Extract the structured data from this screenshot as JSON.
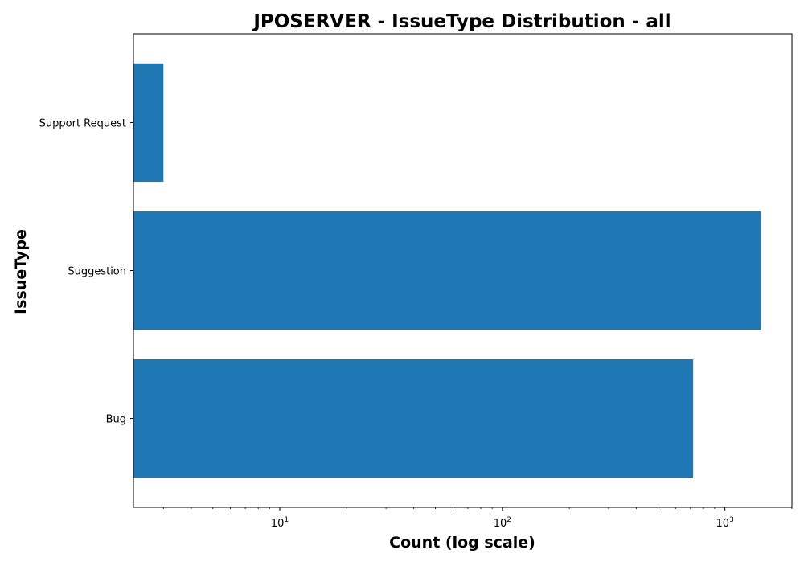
{
  "chart_data": {
    "type": "bar",
    "orientation": "horizontal",
    "title": "JPOSERVER - IssueType Distribution - all",
    "xlabel": "Count (log scale)",
    "ylabel": "IssueType",
    "x_scale": "log",
    "xlim": [
      2.2,
      2000
    ],
    "x_tick_values": [
      10,
      100,
      1000
    ],
    "x_tick_labels": [
      {
        "base": "10",
        "exp": "1"
      },
      {
        "base": "10",
        "exp": "2"
      },
      {
        "base": "10",
        "exp": "3"
      }
    ],
    "categories": [
      "Bug",
      "Suggestion",
      "Support Request"
    ],
    "values": [
      720,
      1450,
      3
    ],
    "grid": false,
    "legend": "none",
    "bar_color": "#1f77b4"
  }
}
